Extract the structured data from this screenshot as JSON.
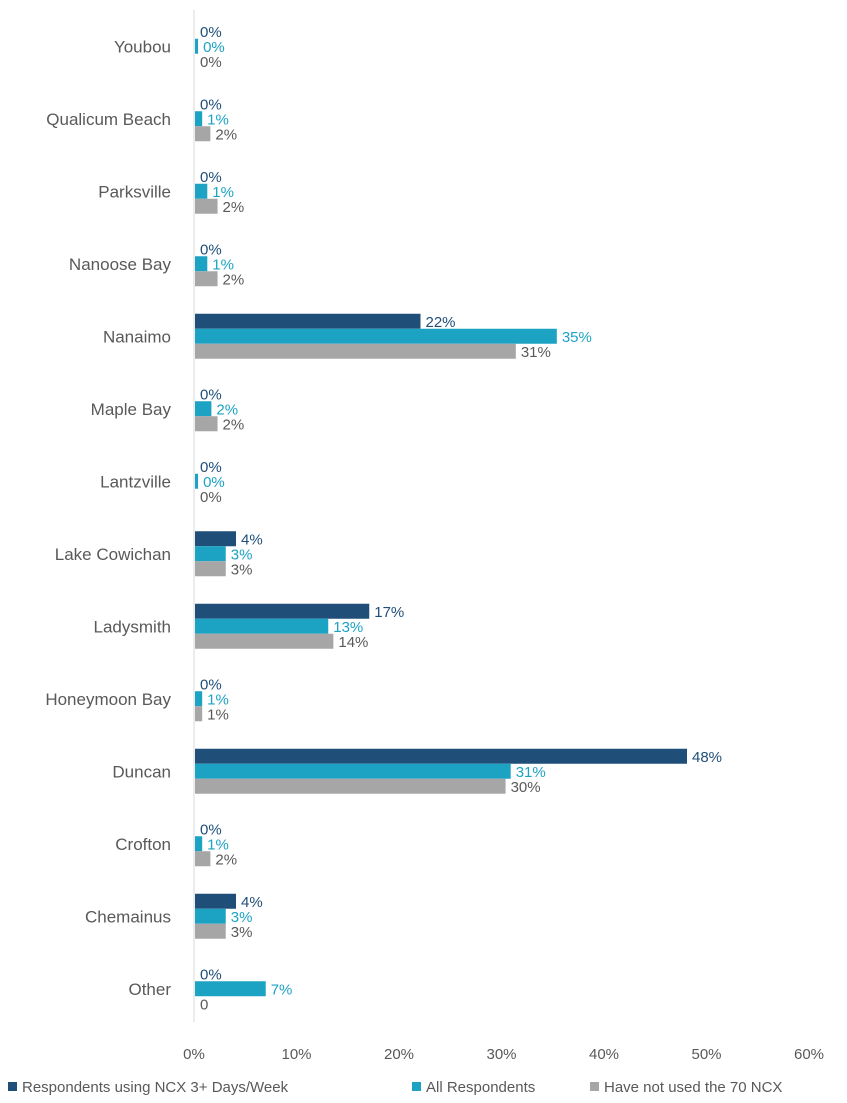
{
  "chart_data": {
    "type": "bar",
    "orientation": "horizontal",
    "categories": [
      "Youbou",
      "Qualicum Beach",
      "Parksville",
      "Nanoose Bay",
      "Nanaimo",
      "Maple Bay",
      "Lantzville",
      "Lake Cowichan",
      "Ladysmith",
      "Honeymoon Bay",
      "Duncan",
      "Crofton",
      "Chemainus",
      "Other"
    ],
    "series": [
      {
        "name": "Respondents using NCX 3+ Days/Week",
        "color": "#1f4e79",
        "values": [
          0,
          0,
          0,
          0,
          22,
          0,
          0,
          4,
          17,
          0,
          48,
          0,
          4,
          0
        ],
        "labels": [
          "0%",
          "0%",
          "0%",
          "0%",
          "22%",
          "0%",
          "0%",
          "4%",
          "17%",
          "0%",
          "48%",
          "0%",
          "4%",
          "0%"
        ]
      },
      {
        "name": "All Respondents",
        "color": "#1ca3c4",
        "values": [
          0.3,
          0.7,
          1.2,
          1.2,
          35.3,
          1.6,
          0.3,
          3,
          13,
          0.7,
          30.8,
          0.7,
          3,
          6.9
        ],
        "labels": [
          "0%",
          "1%",
          "1%",
          "1%",
          "35%",
          "2%",
          "0%",
          "3%",
          "13%",
          "1%",
          "31%",
          "1%",
          "3%",
          "7%"
        ]
      },
      {
        "name": "Have not used the 70 NCX",
        "color": "#a6a6a6",
        "values": [
          0,
          1.5,
          2.2,
          2.2,
          31.3,
          2.2,
          0,
          3,
          13.5,
          0.7,
          30.3,
          1.5,
          3,
          0
        ],
        "labels": [
          "0%",
          "2%",
          "2%",
          "2%",
          "31%",
          "2%",
          "0%",
          "3%",
          "14%",
          "1%",
          "30%",
          "2%",
          "3%",
          "0"
        ]
      }
    ],
    "xaxis": {
      "ticks": [
        0,
        10,
        20,
        30,
        40,
        50,
        60
      ],
      "tick_labels": [
        "0%",
        "10%",
        "20%",
        "30%",
        "40%",
        "50%",
        "60%"
      ],
      "xlim": [
        0,
        60
      ]
    },
    "title": "",
    "xlabel": "",
    "ylabel": "",
    "grid": false,
    "legend_position": "bottom"
  }
}
